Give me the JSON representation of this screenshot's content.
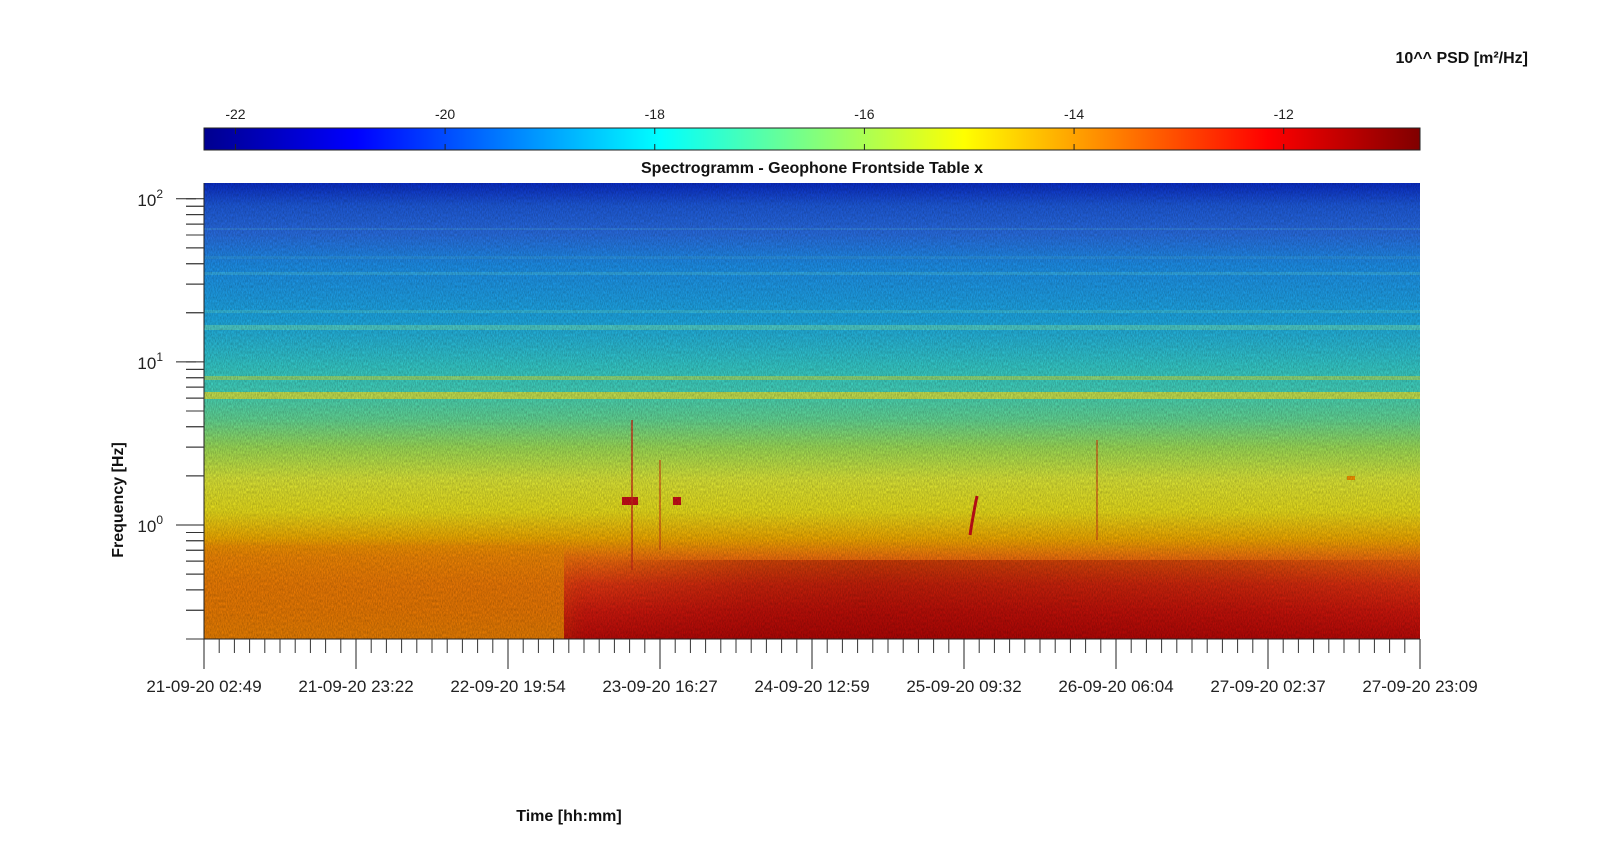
{
  "chart_data": {
    "type": "heatmap",
    "title": "Spectrogramm - Geophone Frontside Table x",
    "xlabel": "Time [hh:mm]",
    "ylabel": "Frequency [Hz]",
    "colorbar": {
      "label": "10^^ PSD [m²/Hz]",
      "range": [
        -22.3,
        -10.7
      ],
      "ticks": [
        -22,
        -20,
        -18,
        -16,
        -14,
        -12
      ],
      "colormap": "jet",
      "placement": "top"
    },
    "x_ticks": [
      "21-09-20 02:49",
      "21-09-20 23:22",
      "22-09-20 19:54",
      "23-09-20 16:27",
      "24-09-20 12:59",
      "25-09-20 09:32",
      "26-09-20 06:04",
      "27-09-20 02:37",
      "27-09-20 23:09"
    ],
    "y_scale": "log",
    "y_range": [
      0.2,
      125
    ],
    "y_ticks": [
      {
        "value": 1,
        "base": "10",
        "exp": "0"
      },
      {
        "value": 10,
        "base": "10",
        "exp": "1"
      },
      {
        "value": 100,
        "base": "10",
        "exp": "2"
      }
    ],
    "features": [
      {
        "description": "high PSD below ~0.7 Hz",
        "log_psd": -12.0
      },
      {
        "description": "line around 6 Hz",
        "log_psd": -15.2
      },
      {
        "description": "line around 16 Hz",
        "log_psd": -16.5
      },
      {
        "description": "low PSD above 40 Hz",
        "log_psd": -19.5
      }
    ]
  }
}
